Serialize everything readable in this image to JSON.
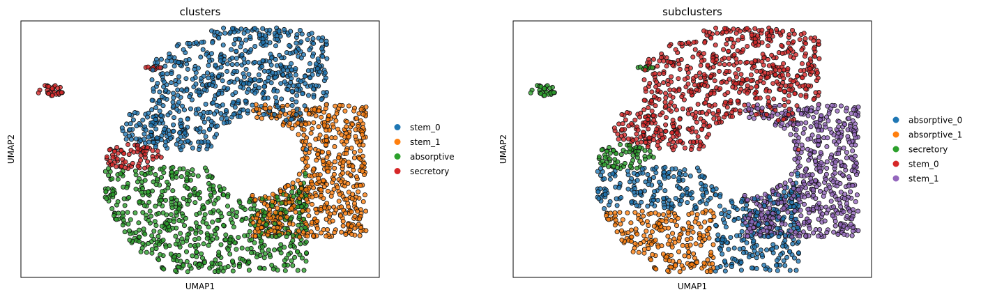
{
  "chart_data": [
    {
      "type": "scatter",
      "title": "clusters",
      "xlabel": "UMAP1",
      "ylabel": "UMAP2",
      "xticks": false,
      "yticks": false,
      "legend_position": "right",
      "series": [
        {
          "name": "stem_0",
          "color": "#1f77b4"
        },
        {
          "name": "stem_1",
          "color": "#ff7f0e"
        },
        {
          "name": "absorptive",
          "color": "#2ca02c"
        },
        {
          "name": "secretory",
          "color": "#d62728"
        }
      ]
    },
    {
      "type": "scatter",
      "title": "subclusters",
      "xlabel": "UMAP1",
      "ylabel": "UMAP2",
      "xticks": false,
      "yticks": false,
      "legend_position": "right",
      "series": [
        {
          "name": "absorptive_0",
          "color": "#1f77b4"
        },
        {
          "name": "absorptive_1",
          "color": "#ff7f0e"
        },
        {
          "name": "secretory",
          "color": "#2ca02c"
        },
        {
          "name": "stem_0",
          "color": "#d62728"
        },
        {
          "name": "stem_1",
          "color": "#9467bd"
        }
      ]
    }
  ]
}
